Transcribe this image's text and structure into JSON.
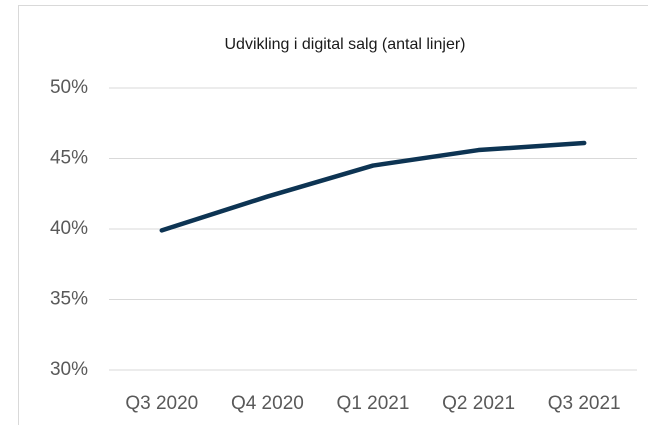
{
  "chart_data": {
    "type": "line",
    "title": "Udvikling i digital salg (antal linjer)",
    "categories": [
      "Q3 2020",
      "Q4 2020",
      "Q1 2021",
      "Q2 2021",
      "Q3 2021"
    ],
    "series": [
      {
        "color": "#0d3453",
        "values": [
          39.9,
          42.3,
          44.5,
          45.6,
          46.1
        ]
      }
    ],
    "ylim": [
      30,
      50
    ],
    "yticks": [
      {
        "value": 30,
        "label": "30%"
      },
      {
        "value": 35,
        "label": "35%"
      },
      {
        "value": 40,
        "label": "40%"
      },
      {
        "value": 45,
        "label": "45%"
      },
      {
        "value": 50,
        "label": "50%"
      }
    ],
    "grid": true
  }
}
